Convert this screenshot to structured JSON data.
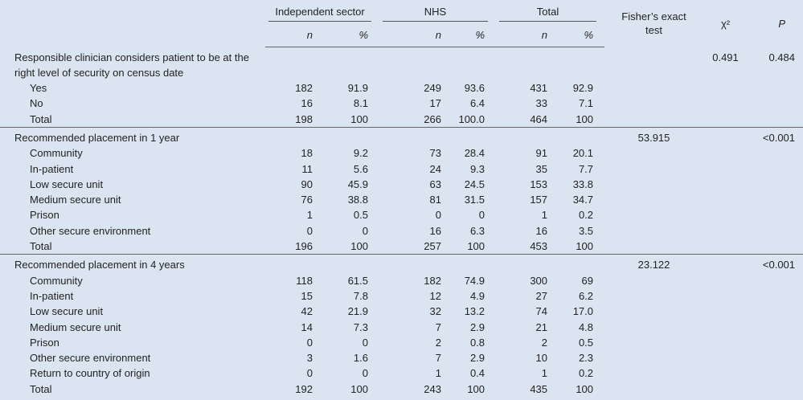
{
  "header": {
    "groups": [
      "Independent sector",
      "NHS",
      "Total"
    ],
    "subheaders": [
      "n",
      "%",
      "n",
      "%",
      "n",
      "%"
    ],
    "fisher": "Fisher’s exact test",
    "chi": "χ²",
    "p": "P"
  },
  "sections": [
    {
      "label": "Responsible clinician considers patient to be at the right level of security on census date",
      "chi": "0.491",
      "p": "0.484",
      "rows": [
        [
          "Yes",
          "182",
          "91.9",
          "249",
          "93.6",
          "431",
          "92.9"
        ],
        [
          "No",
          "16",
          "8.1",
          "17",
          "6.4",
          "33",
          "7.1"
        ],
        [
          "Total",
          "198",
          "100",
          "266",
          "100.0",
          "464",
          "100"
        ]
      ]
    },
    {
      "label": "Recommended placement in 1 year",
      "fisher": "53.915",
      "p": "<0.001",
      "rows": [
        [
          "Community",
          "18",
          "9.2",
          "73",
          "28.4",
          "91",
          "20.1"
        ],
        [
          "In-patient",
          "11",
          "5.6",
          "24",
          "9.3",
          "35",
          "7.7"
        ],
        [
          "Low secure unit",
          "90",
          "45.9",
          "63",
          "24.5",
          "153",
          "33.8"
        ],
        [
          "Medium secure unit",
          "76",
          "38.8",
          "81",
          "31.5",
          "157",
          "34.7"
        ],
        [
          "Prison",
          "1",
          "0.5",
          "0",
          "0",
          "1",
          "0.2"
        ],
        [
          "Other secure environment",
          "0",
          "0",
          "16",
          "6.3",
          "16",
          "3.5"
        ],
        [
          "Total",
          "196",
          "100",
          "257",
          "100",
          "453",
          "100"
        ]
      ]
    },
    {
      "label": "Recommended placement in 4 years",
      "fisher": "23.122",
      "p": "<0.001",
      "rows": [
        [
          "Community",
          "118",
          "61.5",
          "182",
          "74.9",
          "300",
          "69"
        ],
        [
          "In-patient",
          "15",
          "7.8",
          "12",
          "4.9",
          "27",
          "6.2"
        ],
        [
          "Low secure unit",
          "42",
          "21.9",
          "32",
          "13.2",
          "74",
          "17.0"
        ],
        [
          "Medium secure unit",
          "14",
          "7.3",
          "7",
          "2.9",
          "21",
          "4.8"
        ],
        [
          "Prison",
          "0",
          "0",
          "2",
          "0.8",
          "2",
          "0.5"
        ],
        [
          "Other secure environment",
          "3",
          "1.6",
          "7",
          "2.9",
          "10",
          "2.3"
        ],
        [
          "Return to country of origin",
          "0",
          "0",
          "1",
          "0.4",
          "1",
          "0.2"
        ],
        [
          "Total",
          "192",
          "100",
          "243",
          "100",
          "435",
          "100"
        ]
      ]
    }
  ]
}
